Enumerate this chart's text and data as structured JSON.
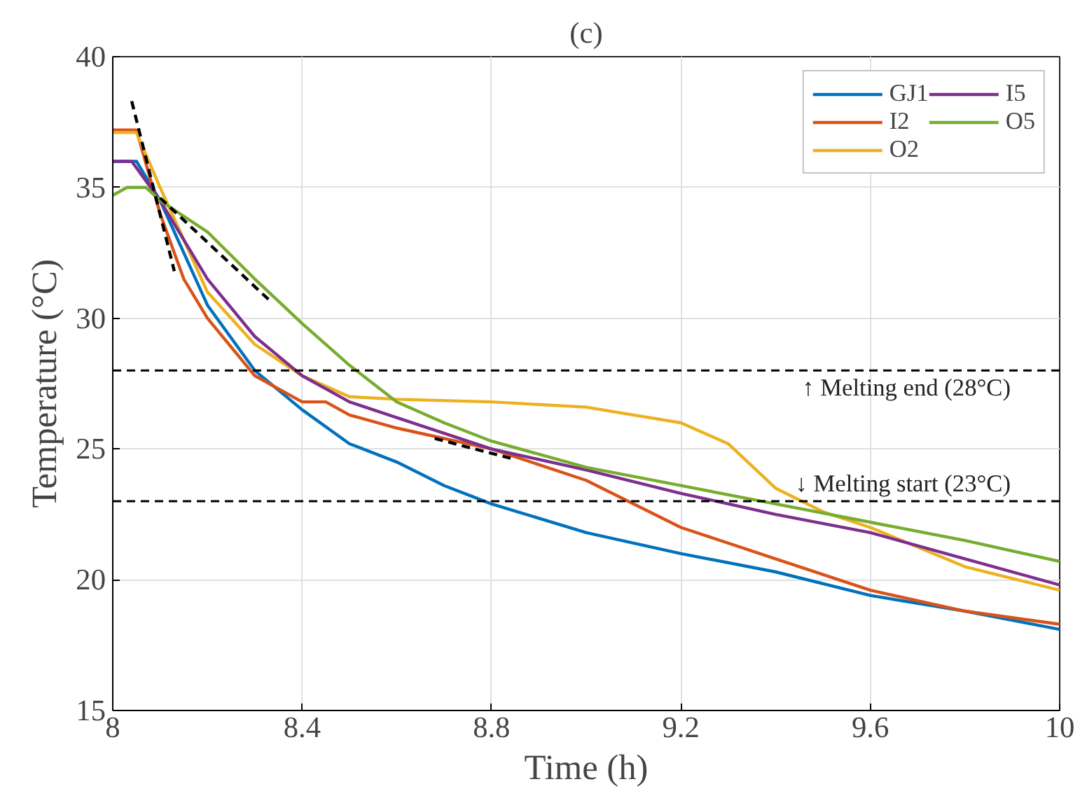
{
  "chart_data": {
    "type": "line",
    "title": "(c)",
    "xlabel": "Time (h)",
    "ylabel": "Temperature (°C)",
    "xlim": [
      8,
      10
    ],
    "ylim": [
      15,
      40
    ],
    "xticks": [
      8,
      8.4,
      8.8,
      9.2,
      9.6,
      10
    ],
    "yticks": [
      15,
      20,
      25,
      30,
      35,
      40
    ],
    "grid": true,
    "legend": "top right",
    "line_style": "solid",
    "marker": "none",
    "series": [
      {
        "name": "GJ1",
        "color": "#0072bd",
        "x": [
          8,
          8.05,
          8.1,
          8.15,
          8.2,
          8.3,
          8.4,
          8.5,
          8.6,
          8.7,
          8.8,
          9.0,
          9.2,
          9.4,
          9.6,
          9.8,
          10
        ],
        "values": [
          36,
          36,
          34.5,
          32.5,
          30.5,
          28,
          26.5,
          25.2,
          24.5,
          23.6,
          22.9,
          21.8,
          21,
          20.3,
          19.4,
          18.8,
          18.1
        ]
      },
      {
        "name": "I2",
        "color": "#d95319",
        "x": [
          8,
          8.05,
          8.1,
          8.15,
          8.2,
          8.3,
          8.4,
          8.45,
          8.5,
          8.6,
          8.8,
          9.0,
          9.2,
          9.4,
          9.6,
          9.8,
          10
        ],
        "values": [
          37.2,
          37.2,
          34,
          31.5,
          30,
          27.8,
          26.8,
          26.8,
          26.3,
          25.8,
          25,
          23.8,
          22,
          20.8,
          19.6,
          18.8,
          18.3
        ]
      },
      {
        "name": "O2",
        "color": "#edb120",
        "x": [
          8,
          8.05,
          8.1,
          8.15,
          8.2,
          8.3,
          8.4,
          8.5,
          8.6,
          8.8,
          9.0,
          9.1,
          9.2,
          9.3,
          9.4,
          9.5,
          9.6,
          9.8,
          10
        ],
        "values": [
          37.1,
          37.1,
          35,
          33,
          31,
          29,
          27.8,
          27,
          26.9,
          26.8,
          26.6,
          26.3,
          26,
          25.2,
          23.5,
          22.6,
          22,
          20.5,
          19.6
        ]
      },
      {
        "name": "I5",
        "color": "#7e2f8e",
        "x": [
          8,
          8.04,
          8.1,
          8.15,
          8.2,
          8.3,
          8.4,
          8.5,
          8.6,
          8.8,
          9.0,
          9.2,
          9.4,
          9.6,
          9.8,
          10
        ],
        "values": [
          36,
          36,
          34.5,
          33,
          31.5,
          29.3,
          27.8,
          26.8,
          26.2,
          25,
          24.2,
          23.3,
          22.5,
          21.8,
          20.8,
          19.8
        ]
      },
      {
        "name": "O5",
        "color": "#77ac30",
        "x": [
          8,
          8.03,
          8.07,
          8.1,
          8.2,
          8.3,
          8.4,
          8.5,
          8.6,
          8.7,
          8.8,
          9.0,
          9.2,
          9.4,
          9.6,
          9.8,
          10
        ],
        "values": [
          34.7,
          35,
          35,
          34.5,
          33.3,
          31.5,
          29.8,
          28.2,
          26.8,
          26,
          25.3,
          24.3,
          23.6,
          22.9,
          22.2,
          21.5,
          20.7
        ]
      },
      {
        "color": "#000000",
        "line_style": "dashed",
        "x": [
          8.04,
          8.13
        ],
        "values": [
          38.3,
          31.8
        ]
      },
      {
        "color": "#000000",
        "line_style": "dashed",
        "x": [
          8.1,
          8.33
        ],
        "values": [
          34.6,
          30.7
        ]
      },
      {
        "color": "#000000",
        "line_style": "dashed",
        "x": [
          8.68,
          8.85
        ],
        "values": [
          25.4,
          24.6
        ]
      }
    ],
    "ref_lines": [
      {
        "axis": "y",
        "value": 28,
        "label": "↑ Melting end (28°C)",
        "color": "#000000",
        "line_style": "dashed"
      },
      {
        "axis": "y",
        "value": 23,
        "label": "↓ Melting start (23°C)",
        "color": "#000000",
        "line_style": "dashed"
      }
    ]
  }
}
